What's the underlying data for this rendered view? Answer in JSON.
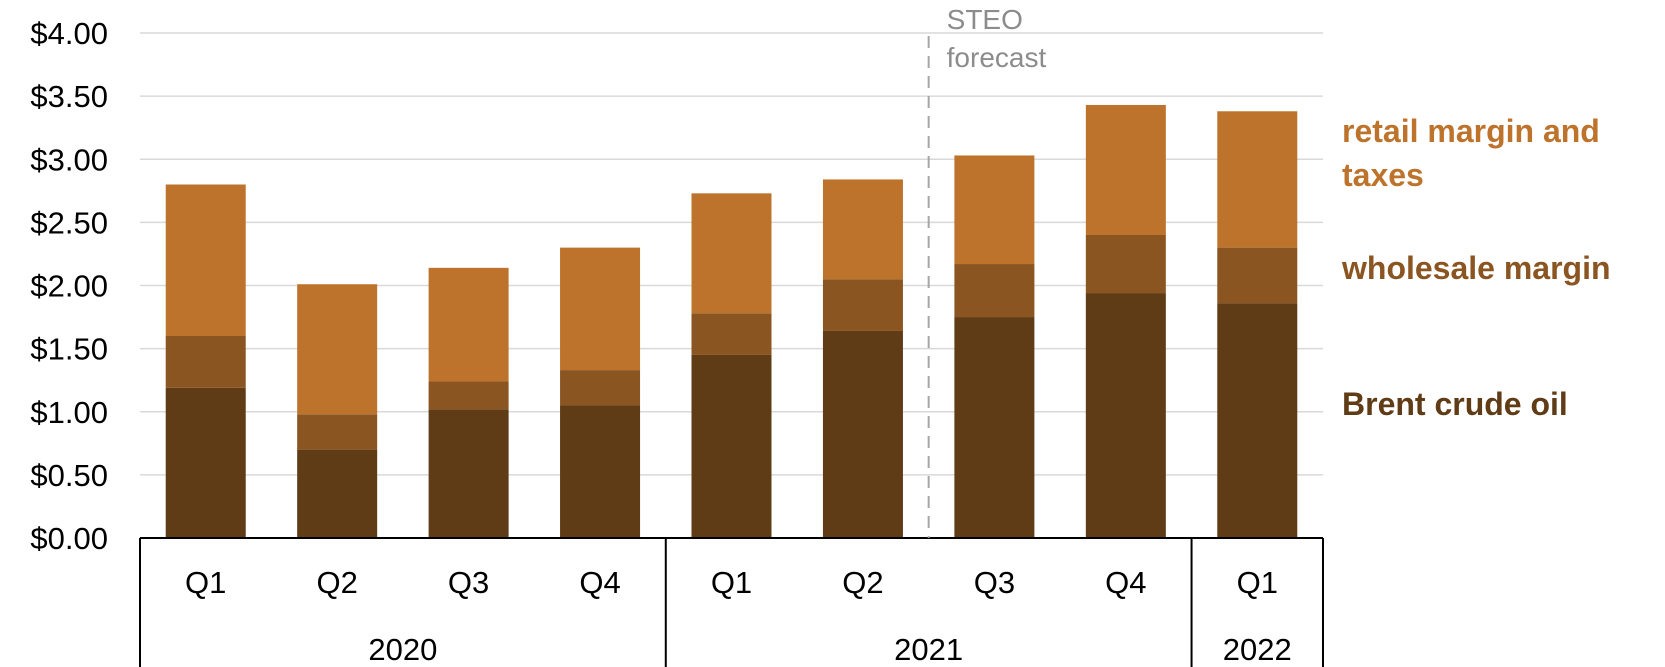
{
  "chart_data": {
    "type": "bar",
    "stacked": true,
    "categories": [
      "Q1",
      "Q2",
      "Q3",
      "Q4",
      "Q1",
      "Q2",
      "Q3",
      "Q4",
      "Q1"
    ],
    "groups": [
      {
        "label": "2020",
        "count": 4
      },
      {
        "label": "2021",
        "count": 4
      },
      {
        "label": "2022",
        "count": 1
      }
    ],
    "series": [
      {
        "name": "Brent crude oil",
        "color": "#5f3b16",
        "values": [
          1.19,
          0.7,
          1.02,
          1.05,
          1.45,
          1.64,
          1.75,
          1.94,
          1.86
        ]
      },
      {
        "name": "wholesale margin",
        "color": "#8b5522",
        "values": [
          0.41,
          0.28,
          0.22,
          0.28,
          0.33,
          0.41,
          0.42,
          0.46,
          0.44
        ]
      },
      {
        "name": "retail margin and taxes",
        "color": "#bd732b",
        "values": [
          1.2,
          1.03,
          0.9,
          0.97,
          0.95,
          0.79,
          0.86,
          1.03,
          1.08
        ]
      }
    ],
    "ylim": [
      0,
      4
    ],
    "yticks": [
      "$0.00",
      "$0.50",
      "$1.00",
      "$1.50",
      "$2.00",
      "$2.50",
      "$3.00",
      "$3.50",
      "$4.00"
    ],
    "grid": true,
    "legend": {
      "position": "right",
      "retail_line1": "retail margin and",
      "retail_line2": "taxes",
      "wholesale": "wholesale margin",
      "brent": "Brent crude oil"
    },
    "annotation": {
      "line1": "STEO",
      "line2": "forecast",
      "after_category_index": 5
    }
  }
}
